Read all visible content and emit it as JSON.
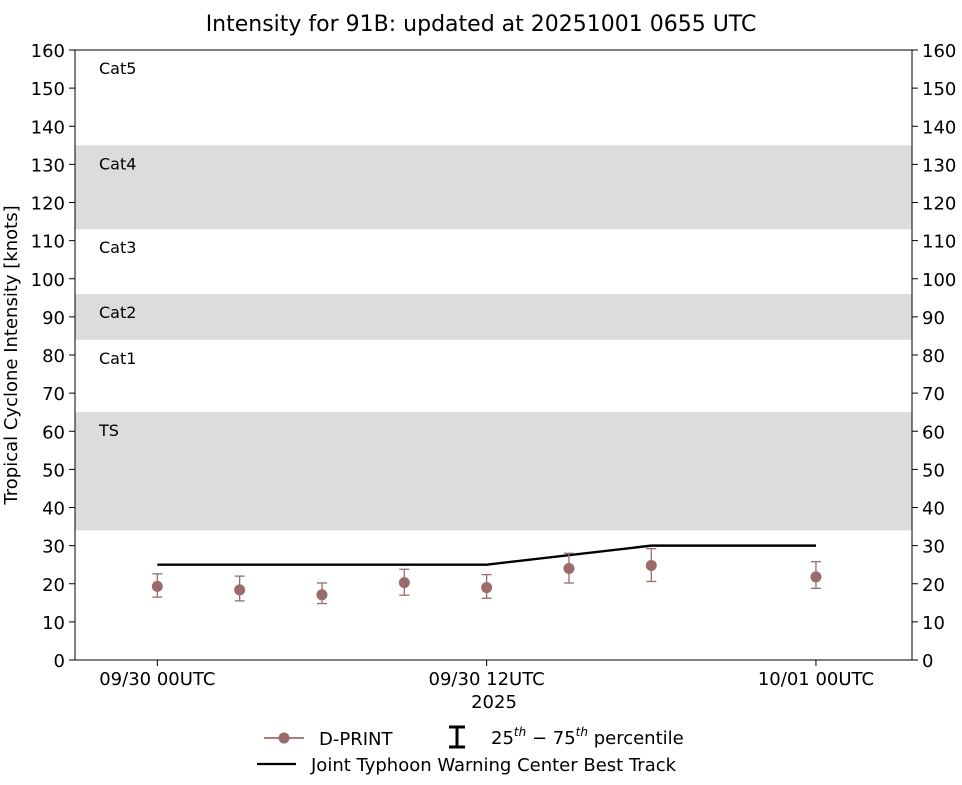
{
  "chart_data": {
    "type": "scatter",
    "title": "Intensity for 91B: updated at 20251001 0655 UTC",
    "xlabel": "2025",
    "ylabel": "Tropical Cyclone Intensity [knots]",
    "ylim": [
      0,
      160
    ],
    "xlim_hours": [
      -3,
      27.5
    ],
    "yticks": [
      0,
      10,
      20,
      30,
      40,
      50,
      60,
      70,
      80,
      90,
      100,
      110,
      120,
      130,
      140,
      150,
      160
    ],
    "xticks": [
      {
        "hour": 0,
        "label": "09/30 00UTC"
      },
      {
        "hour": 12,
        "label": "09/30 12UTC"
      },
      {
        "hour": 24,
        "label": "10/01 00UTC"
      }
    ],
    "categories": [
      {
        "label": "TS",
        "low": 34,
        "high": 65,
        "shaded": true
      },
      {
        "label": "Cat1",
        "low": 65,
        "high": 84,
        "shaded": false
      },
      {
        "label": "Cat2",
        "low": 84,
        "high": 96,
        "shaded": true
      },
      {
        "label": "Cat3",
        "low": 96,
        "high": 113,
        "shaded": false
      },
      {
        "label": "Cat4",
        "low": 113,
        "high": 135,
        "shaded": true
      },
      {
        "label": "Cat5",
        "low": 135,
        "high": 160,
        "shaded": false
      }
    ],
    "series": [
      {
        "name": "D-PRINT",
        "color": "#9b6b6b",
        "points": [
          {
            "hour": 0,
            "value": 19.3,
            "p25": 16.5,
            "p75": 22.6
          },
          {
            "hour": 3,
            "value": 18.4,
            "p25": 15.5,
            "p75": 22.0
          },
          {
            "hour": 6,
            "value": 17.1,
            "p25": 14.8,
            "p75": 20.2
          },
          {
            "hour": 9,
            "value": 20.3,
            "p25": 17.0,
            "p75": 23.8
          },
          {
            "hour": 12,
            "value": 19.0,
            "p25": 16.2,
            "p75": 22.4
          },
          {
            "hour": 15,
            "value": 24.0,
            "p25": 20.2,
            "p75": 28.0
          },
          {
            "hour": 18,
            "value": 24.8,
            "p25": 20.6,
            "p75": 29.2
          },
          {
            "hour": 24,
            "value": 21.8,
            "p25": 18.8,
            "p75": 25.8
          }
        ]
      },
      {
        "name": "Joint Typhoon Warning Center Best Track",
        "color": "#000000",
        "points": [
          {
            "hour": 0,
            "value": 25
          },
          {
            "hour": 6,
            "value": 25
          },
          {
            "hour": 12,
            "value": 25
          },
          {
            "hour": 18,
            "value": 30
          },
          {
            "hour": 24,
            "value": 30
          }
        ]
      }
    ],
    "legend": {
      "placement": "bottom",
      "percentile_label_prefix": "25",
      "percentile_label_sup1": "th",
      "percentile_label_mid": " − 75",
      "percentile_label_sup2": "th",
      "percentile_label_suffix": " percentile"
    },
    "grid": false
  }
}
